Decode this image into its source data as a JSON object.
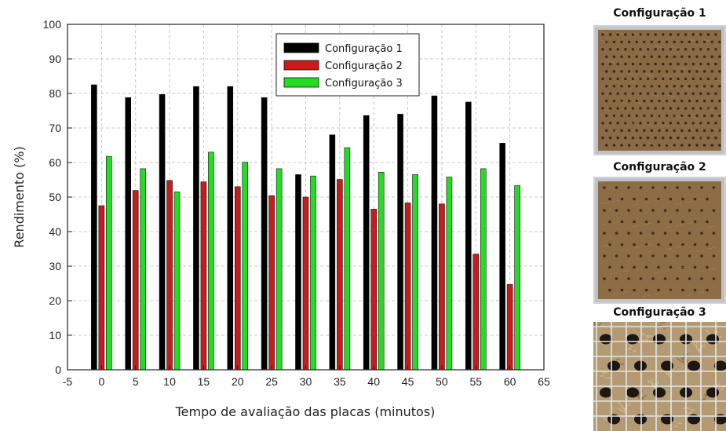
{
  "chart_data": {
    "type": "bar",
    "x": [
      0,
      5,
      10,
      15,
      20,
      25,
      30,
      35,
      40,
      45,
      50,
      55,
      60
    ],
    "series": [
      {
        "name": "Configuração 1",
        "color": "#000000",
        "values": [
          82.5,
          78.8,
          79.7,
          82.0,
          82.0,
          78.8,
          56.5,
          68.0,
          73.6,
          74.0,
          79.3,
          77.5,
          65.6
        ]
      },
      {
        "name": "Configuração 2",
        "color": "#cc1a1a",
        "values": [
          47.5,
          51.9,
          54.8,
          54.4,
          53.0,
          50.4,
          50.0,
          55.1,
          46.5,
          48.3,
          48.0,
          33.5,
          24.7
        ]
      },
      {
        "name": "Configuração 3",
        "color": "#22dd22",
        "values": [
          61.8,
          58.2,
          51.5,
          63.0,
          60.1,
          58.2,
          56.1,
          64.3,
          57.2,
          56.5,
          55.8,
          58.2,
          53.3
        ]
      }
    ],
    "xlabel": "Tempo de avaliação das placas (minutos)",
    "ylabel": "Rendimento (%)",
    "xlim": [
      -5,
      65
    ],
    "ylim": [
      0,
      100
    ],
    "xticks": [
      "-5",
      "0",
      "5",
      "10",
      "15",
      "20",
      "25",
      "30",
      "35",
      "40",
      "45",
      "50",
      "55",
      "60",
      "65"
    ],
    "yticks": [
      "0",
      "10",
      "20",
      "30",
      "40",
      "50",
      "60",
      "70",
      "80",
      "90",
      "100"
    ],
    "grid": true,
    "legend_position": "top-center"
  },
  "photos": [
    {
      "title": "Configuração 1",
      "pattern": "dense-dots",
      "color": "#8a6a44"
    },
    {
      "title": "Configuração 2",
      "pattern": "sparse-dots",
      "color": "#8d6d45"
    },
    {
      "title": "Configuração 3",
      "pattern": "wire-mesh",
      "color": "#b49a72"
    }
  ]
}
